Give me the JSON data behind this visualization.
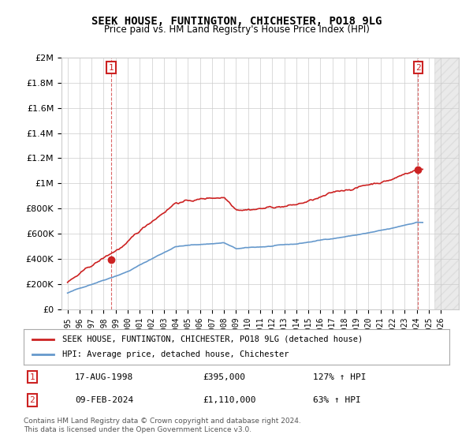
{
  "title": "SEEK HOUSE, FUNTINGTON, CHICHESTER, PO18 9LG",
  "subtitle": "Price paid vs. HM Land Registry's House Price Index (HPI)",
  "footer": "Contains HM Land Registry data © Crown copyright and database right 2024.\nThis data is licensed under the Open Government Licence v3.0.",
  "legend_line1": "SEEK HOUSE, FUNTINGTON, CHICHESTER, PO18 9LG (detached house)",
  "legend_line2": "HPI: Average price, detached house, Chichester",
  "transaction1_label": "17-AUG-1998",
  "transaction1_price": "£395,000",
  "transaction1_hpi": "127% ↑ HPI",
  "transaction2_label": "09-FEB-2024",
  "transaction2_price": "£1,110,000",
  "transaction2_hpi": "63% ↑ HPI",
  "ylim": [
    0,
    2000000
  ],
  "yticks": [
    0,
    200000,
    400000,
    600000,
    800000,
    1000000,
    1200000,
    1400000,
    1600000,
    1800000,
    2000000
  ],
  "hpi_color": "#6699cc",
  "price_color": "#cc2222",
  "background_color": "#ffffff",
  "grid_color": "#cccccc",
  "annotation_color": "#cc2222",
  "dashed_line_color": "#cc2222"
}
